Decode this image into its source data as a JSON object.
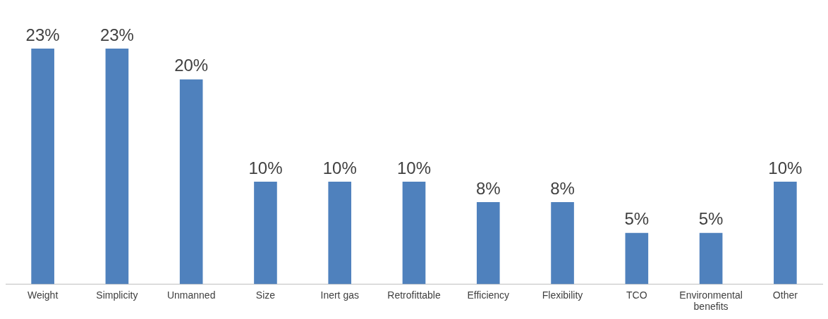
{
  "chart_data": {
    "type": "bar",
    "categories": [
      "Weight",
      "Simplicity",
      "Unmanned",
      "Size",
      "Inert gas",
      "Retrofittable",
      "Efficiency",
      "Flexibility",
      "TCO",
      "Environmental benefits",
      "Other"
    ],
    "values": [
      23,
      23,
      20,
      10,
      10,
      10,
      8,
      8,
      5,
      5,
      10
    ],
    "value_labels": [
      "23%",
      "23%",
      "20%",
      "10%",
      "10%",
      "10%",
      "8%",
      "8%",
      "5%",
      "5%",
      "10%"
    ],
    "color": "#4f81bd",
    "grid": false,
    "legend": false,
    "tick_labels": "x"
  }
}
